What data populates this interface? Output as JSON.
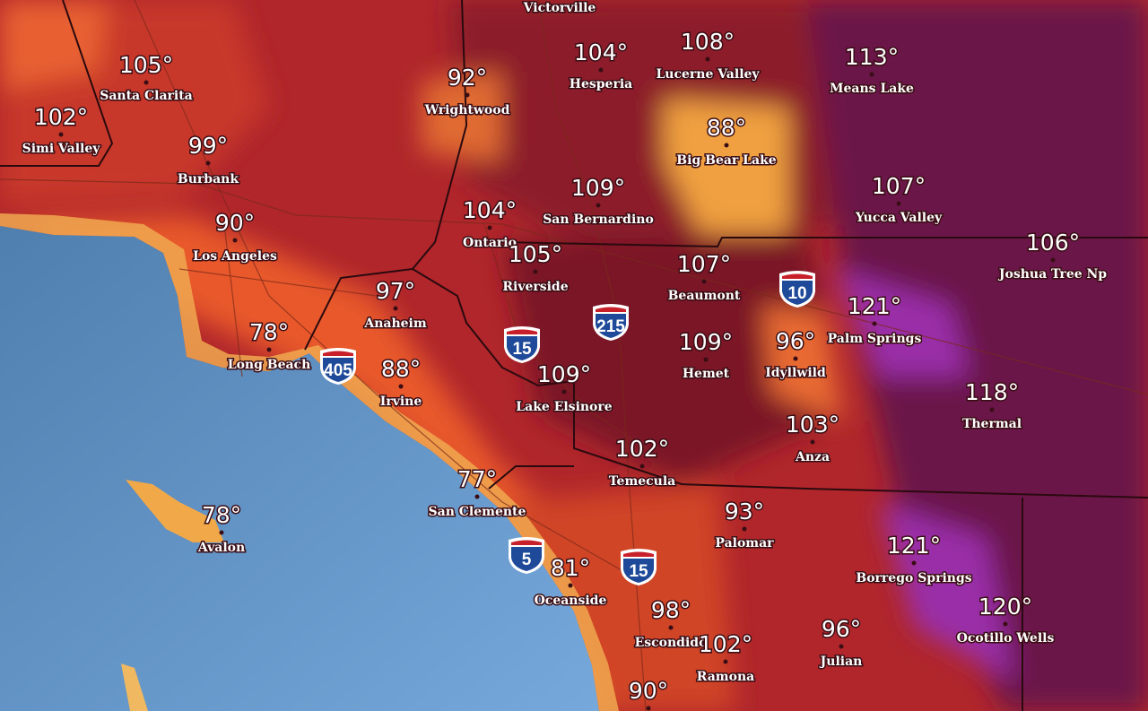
{
  "map": {
    "places": [
      {
        "name": "Victorville"
      },
      {
        "temp": "105°",
        "name": "Santa Clarita"
      },
      {
        "temp": "102°",
        "name": "Simi Valley"
      },
      {
        "temp": "99°",
        "name": "Burbank"
      },
      {
        "temp": "90°",
        "name": "Los Angeles"
      },
      {
        "temp": "92°",
        "name": "Wrightwood"
      },
      {
        "temp": "104°",
        "name": "Hesperia"
      },
      {
        "temp": "108°",
        "name": "Lucerne Valley"
      },
      {
        "temp": "113°",
        "name": "Means Lake"
      },
      {
        "temp": "88°",
        "name": "Big Bear Lake"
      },
      {
        "temp": "107°",
        "name": "Yucca Valley"
      },
      {
        "temp": "109°",
        "name": "San Bernardino"
      },
      {
        "temp": "104°",
        "name": "Ontario"
      },
      {
        "temp": "105°",
        "name": "Riverside"
      },
      {
        "temp": "107°",
        "name": "Beaumont"
      },
      {
        "temp": "106°",
        "name": "Joshua Tree Np"
      },
      {
        "temp": "97°",
        "name": "Anaheim"
      },
      {
        "temp": "78°",
        "name": "Long Beach"
      },
      {
        "temp": "88°",
        "name": "Irvine"
      },
      {
        "temp": "109°",
        "name": "Hemet"
      },
      {
        "temp": "96°",
        "name": "Idyllwild"
      },
      {
        "temp": "121°",
        "name": "Palm Springs"
      },
      {
        "temp": "109°",
        "name": "Lake Elsinore"
      },
      {
        "temp": "118°",
        "name": "Thermal"
      },
      {
        "temp": "103°",
        "name": "Anza"
      },
      {
        "temp": "102°",
        "name": "Temecula"
      },
      {
        "temp": "77°",
        "name": "San Clemente"
      },
      {
        "temp": "78°",
        "name": "Avalon"
      },
      {
        "temp": "93°",
        "name": "Palomar"
      },
      {
        "temp": "121°",
        "name": "Borrego Springs"
      },
      {
        "temp": "81°",
        "name": "Oceanside"
      },
      {
        "temp": "98°",
        "name": "Escondido"
      },
      {
        "temp": "102°",
        "name": "Ramona"
      },
      {
        "temp": "96°",
        "name": "Julian"
      },
      {
        "temp": "120°",
        "name": "Ocotillo Wells"
      },
      {
        "temp": "90°"
      }
    ],
    "shields": [
      "10",
      "215",
      "15",
      "405",
      "5",
      "15"
    ]
  }
}
